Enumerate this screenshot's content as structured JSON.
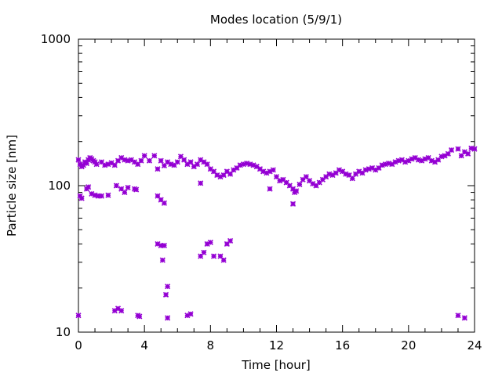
{
  "chart_data": {
    "type": "scatter",
    "title": "Modes location (5/9/1)",
    "xlabel": "Time [hour]",
    "ylabel": "Particle size [nm]",
    "xlim": [
      0,
      24
    ],
    "ylim": [
      10,
      1000
    ],
    "y_scale": "log",
    "grid": false,
    "x_ticks": [
      0,
      4,
      8,
      12,
      16,
      20,
      24
    ],
    "x_tick_labels": [
      "0",
      "4",
      "8",
      "12",
      "16",
      "20",
      "24"
    ],
    "y_ticks": [
      10,
      100,
      1000
    ],
    "y_tick_labels": [
      "10",
      "100",
      "1000"
    ],
    "marker_color": "#9400d3",
    "series": [
      {
        "points": [
          [
            0.0,
            150
          ],
          [
            0.1,
            140
          ],
          [
            0.2,
            135
          ],
          [
            0.3,
            138
          ],
          [
            0.4,
            145
          ],
          [
            0.5,
            142
          ],
          [
            0.6,
            150
          ],
          [
            0.7,
            155
          ],
          [
            0.8,
            152
          ],
          [
            0.9,
            148
          ],
          [
            1.0,
            145
          ],
          [
            1.1,
            140
          ],
          [
            1.4,
            145
          ],
          [
            1.6,
            138
          ],
          [
            1.8,
            140
          ],
          [
            2.0,
            143
          ],
          [
            2.2,
            138
          ],
          [
            2.4,
            148
          ],
          [
            2.6,
            155
          ],
          [
            2.8,
            150
          ],
          [
            3.0,
            148
          ],
          [
            3.2,
            150
          ],
          [
            3.4,
            145
          ],
          [
            3.6,
            140
          ],
          [
            3.8,
            148
          ],
          [
            4.0,
            160
          ],
          [
            4.3,
            148
          ],
          [
            4.6,
            160
          ],
          [
            4.8,
            130
          ],
          [
            5.0,
            148
          ],
          [
            5.2,
            137
          ],
          [
            5.4,
            145
          ],
          [
            5.6,
            140
          ],
          [
            5.8,
            138
          ],
          [
            6.0,
            145
          ],
          [
            6.2,
            158
          ],
          [
            6.4,
            150
          ],
          [
            6.6,
            140
          ],
          [
            6.8,
            145
          ],
          [
            7.0,
            135
          ],
          [
            7.2,
            140
          ],
          [
            7.4,
            150
          ],
          [
            7.6,
            145
          ],
          [
            7.8,
            140
          ],
          [
            8.0,
            130
          ],
          [
            8.2,
            125
          ],
          [
            8.4,
            118
          ],
          [
            8.6,
            115
          ],
          [
            8.8,
            118
          ],
          [
            9.0,
            125
          ],
          [
            9.2,
            120
          ],
          [
            9.4,
            128
          ],
          [
            9.6,
            132
          ],
          [
            9.8,
            138
          ],
          [
            10.0,
            140
          ],
          [
            10.2,
            142
          ],
          [
            10.4,
            140
          ],
          [
            10.6,
            138
          ],
          [
            10.8,
            135
          ],
          [
            11.0,
            130
          ],
          [
            11.2,
            125
          ],
          [
            11.4,
            122
          ],
          [
            11.6,
            125
          ],
          [
            11.8,
            128
          ],
          [
            12.0,
            115
          ],
          [
            12.2,
            108
          ],
          [
            12.4,
            110
          ],
          [
            12.6,
            105
          ],
          [
            12.8,
            100
          ],
          [
            13.0,
            95
          ],
          [
            13.1,
            90
          ],
          [
            13.2,
            92
          ],
          [
            13.4,
            102
          ],
          [
            13.6,
            110
          ],
          [
            13.8,
            115
          ],
          [
            14.0,
            108
          ],
          [
            14.2,
            103
          ],
          [
            14.4,
            100
          ],
          [
            14.6,
            105
          ],
          [
            14.8,
            110
          ],
          [
            15.0,
            115
          ],
          [
            15.2,
            120
          ],
          [
            15.4,
            118
          ],
          [
            15.6,
            122
          ],
          [
            15.8,
            128
          ],
          [
            16.0,
            125
          ],
          [
            16.2,
            120
          ],
          [
            16.4,
            118
          ],
          [
            16.6,
            112
          ],
          [
            16.8,
            120
          ],
          [
            17.0,
            125
          ],
          [
            17.2,
            122
          ],
          [
            17.4,
            128
          ],
          [
            17.6,
            130
          ],
          [
            17.8,
            132
          ],
          [
            18.0,
            128
          ],
          [
            18.2,
            132
          ],
          [
            18.4,
            138
          ],
          [
            18.6,
            140
          ],
          [
            18.8,
            142
          ],
          [
            19.0,
            140
          ],
          [
            19.2,
            145
          ],
          [
            19.4,
            148
          ],
          [
            19.6,
            150
          ],
          [
            19.8,
            145
          ],
          [
            20.0,
            148
          ],
          [
            20.2,
            152
          ],
          [
            20.4,
            155
          ],
          [
            20.6,
            150
          ],
          [
            20.8,
            148
          ],
          [
            21.0,
            152
          ],
          [
            21.2,
            155
          ],
          [
            21.4,
            148
          ],
          [
            21.6,
            145
          ],
          [
            21.8,
            150
          ],
          [
            22.0,
            158
          ],
          [
            22.2,
            160
          ],
          [
            22.4,
            165
          ],
          [
            22.6,
            175
          ],
          [
            23.0,
            178
          ],
          [
            23.2,
            160
          ],
          [
            23.4,
            170
          ],
          [
            23.6,
            165
          ],
          [
            23.8,
            180
          ],
          [
            24.0,
            178
          ],
          [
            0.1,
            85
          ],
          [
            0.2,
            82
          ],
          [
            0.5,
            95
          ],
          [
            0.6,
            98
          ],
          [
            0.8,
            88
          ],
          [
            1.0,
            86
          ],
          [
            1.2,
            85
          ],
          [
            1.4,
            85
          ],
          [
            1.8,
            86
          ],
          [
            2.3,
            100
          ],
          [
            2.6,
            95
          ],
          [
            2.8,
            90
          ],
          [
            3.0,
            97
          ],
          [
            3.4,
            95
          ],
          [
            3.5,
            94
          ],
          [
            4.8,
            85
          ],
          [
            5.0,
            80
          ],
          [
            5.2,
            76
          ],
          [
            7.4,
            104
          ],
          [
            11.6,
            95
          ],
          [
            13.0,
            75
          ],
          [
            0.0,
            13
          ],
          [
            2.2,
            14
          ],
          [
            2.4,
            14.5
          ],
          [
            2.6,
            14
          ],
          [
            3.6,
            13
          ],
          [
            3.7,
            12.8
          ],
          [
            5.4,
            12.5
          ],
          [
            6.6,
            13
          ],
          [
            6.8,
            13.3
          ],
          [
            23.0,
            13
          ],
          [
            23.4,
            12.5
          ],
          [
            4.8,
            40
          ],
          [
            5.0,
            39
          ],
          [
            5.2,
            39
          ],
          [
            5.1,
            31
          ],
          [
            5.3,
            18
          ],
          [
            5.4,
            20.5
          ],
          [
            7.4,
            33
          ],
          [
            7.6,
            35
          ],
          [
            7.8,
            40
          ],
          [
            8.0,
            41
          ],
          [
            8.2,
            33
          ],
          [
            8.6,
            33
          ],
          [
            8.8,
            31
          ],
          [
            9.0,
            40
          ],
          [
            9.2,
            42
          ]
        ]
      }
    ]
  }
}
